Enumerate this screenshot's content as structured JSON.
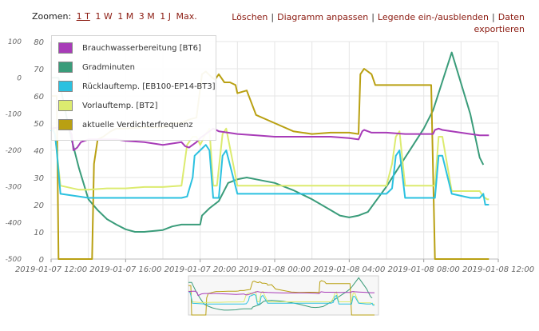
{
  "toolbar": {
    "zoom_label": "Zoomen:",
    "zoom_options": [
      "1 T",
      "1 W",
      "1 M",
      "3 M",
      "1 J",
      "Max."
    ],
    "zoom_active": "1 T",
    "actions": [
      "Löschen",
      "Diagramm anpassen",
      "Legende ein-/ausblenden",
      "Daten exportieren"
    ]
  },
  "chart_data": {
    "type": "line",
    "x_ticks": [
      "2019-01-07 12:00",
      "2019-01-07 16:00",
      "2019-01-07 20:00",
      "2019-01-08 00:00",
      "2019-01-08 04:00",
      "2019-01-08 08:00",
      "2019-01-08 12:00"
    ],
    "y_left": {
      "ylim": [
        -500,
        100
      ],
      "ticks": [
        "100",
        "0",
        "-100",
        "-200",
        "-300",
        "-400",
        "-500"
      ]
    },
    "y_right": {
      "ylim": [
        0,
        80
      ],
      "ticks": [
        "80",
        "70",
        "60",
        "50",
        "40",
        "30",
        "20",
        "10",
        "0"
      ]
    },
    "colors": {
      "Brauchwasserbereitung [BT6]": "#a83cb8",
      "Gradminuten": "#3a9c7a",
      "Rücklauftemp. [EB100-EP14-BT3]": "#2bc1e0",
      "Vorlauftemp. [BT2]": "#dceb6f",
      "aktuelle Verdichterfrequenz": "#b9a012"
    },
    "series": [
      {
        "name": "Brauchwasserbereitung [BT6]",
        "axis": "right",
        "x": [
          0.0,
          0.5,
          0.9,
          1.1,
          1.2,
          1.4,
          1.6,
          1.8,
          2.0,
          2.2,
          2.6,
          3.0,
          3.5,
          4.0,
          5.0,
          6.0,
          7.0,
          7.2,
          7.4,
          7.6,
          7.8,
          8.0,
          8.3,
          8.7,
          9.0,
          9.5,
          10.0,
          11.0,
          12.0,
          13.0,
          14.0,
          15.0,
          16.0,
          16.5,
          16.7,
          16.8,
          17.0,
          17.2,
          18.0,
          19.0,
          20.0,
          20.5,
          20.6,
          20.8,
          21.0,
          21.5,
          22.5,
          23.0,
          23.5
        ],
        "y": [
          48,
          48.5,
          48.5,
          46,
          40,
          41,
          43,
          43.5,
          44,
          44,
          44,
          44,
          44,
          43.5,
          43,
          42,
          43,
          41.5,
          41,
          42,
          43,
          44.5,
          46,
          48,
          47,
          46.5,
          46,
          45.5,
          45,
          45,
          45,
          45,
          44.5,
          44,
          47,
          47.5,
          47,
          46.5,
          46.5,
          46,
          46,
          46,
          47.5,
          48,
          47.5,
          47,
          46,
          45.5,
          45.5
        ]
      },
      {
        "name": "Gradminuten",
        "axis": "left",
        "x": [
          0.0,
          0.4,
          0.6,
          1.0,
          1.5,
          2.0,
          2.5,
          3.0,
          3.5,
          4.0,
          4.5,
          5.0,
          6.0,
          6.5,
          7.0,
          7.5,
          8.0,
          8.1,
          8.5,
          9.0,
          9.5,
          10.0,
          10.5,
          11.0,
          12.0,
          13.0,
          14.0,
          15.0,
          15.5,
          16.0,
          16.5,
          17.0,
          18.0,
          19.0,
          20.0,
          20.5,
          21.5,
          22.5,
          23.0,
          23.2
        ],
        "y": [
          0,
          0,
          -50,
          -150,
          -250,
          -335,
          -365,
          -390,
          -405,
          -418,
          -425,
          -425,
          -420,
          -410,
          -405,
          -405,
          -405,
          -380,
          -360,
          -340,
          -290,
          -280,
          -275,
          -280,
          -290,
          -310,
          -335,
          -365,
          -380,
          -385,
          -380,
          -370,
          -300,
          -220,
          -140,
          -90,
          70,
          -100,
          -220,
          -240
        ]
      },
      {
        "name": "Rücklauftemp. [EB100-EP14-BT3]",
        "axis": "right",
        "x": [
          0.0,
          0.1,
          0.2,
          0.3,
          0.5,
          1.5,
          2.0,
          3.0,
          4.0,
          5.0,
          6.0,
          7.0,
          7.3,
          7.6,
          7.7,
          8.0,
          8.3,
          8.5,
          8.7,
          9.0,
          9.2,
          9.4,
          10.0,
          12.0,
          14.0,
          15.0,
          16.0,
          17.0,
          18.0,
          18.3,
          18.5,
          18.7,
          19.0,
          20.0,
          20.6,
          20.8,
          21.0,
          21.5,
          22.5,
          23.0,
          23.2,
          23.3,
          23.5
        ],
        "y": [
          47,
          47.5,
          46,
          40,
          24,
          23,
          22.5,
          22.5,
          22.5,
          22.5,
          22.5,
          22.5,
          23,
          30,
          38,
          40,
          42,
          40,
          22.5,
          22.5,
          38,
          40,
          24,
          24,
          24,
          24,
          24,
          24,
          24,
          26,
          38,
          40,
          22.5,
          22.5,
          22.5,
          38,
          38,
          24,
          22.5,
          22.5,
          24,
          20,
          20
        ]
      },
      {
        "name": "Vorlauftemp. [BT2]",
        "axis": "right",
        "x": [
          0.0,
          0.1,
          0.2,
          0.3,
          0.5,
          1.5,
          2.0,
          3.0,
          4.0,
          5.0,
          6.0,
          7.0,
          7.3,
          7.6,
          7.8,
          8.0,
          8.3,
          8.5,
          8.7,
          8.9,
          9.2,
          9.4,
          10.0,
          12.0,
          14.0,
          15.0,
          16.0,
          17.0,
          18.0,
          18.3,
          18.5,
          18.7,
          19.0,
          20.0,
          20.6,
          20.8,
          21.0,
          21.5,
          22.5,
          23.0,
          23.2,
          23.4,
          23.5
        ],
        "y": [
          49,
          49,
          47,
          40,
          27,
          25.5,
          25.5,
          26,
          26,
          26.5,
          26.5,
          27,
          42,
          45,
          45,
          42,
          46,
          48,
          27,
          27,
          46,
          48,
          27,
          27,
          27,
          27,
          27,
          27,
          27,
          35,
          45,
          47,
          27,
          27,
          27,
          45,
          45,
          25,
          25,
          25,
          23,
          22,
          22
        ]
      },
      {
        "name": "aktuelle Verdichterfrequenz",
        "axis": "right",
        "x": [
          0.0,
          0.3,
          0.35,
          0.4,
          1.8,
          2.0,
          2.2,
          2.3,
          2.5,
          2.8,
          3.0,
          3.2,
          3.5,
          4.0,
          5.0,
          6.0,
          6.3,
          6.5,
          7.0,
          7.3,
          7.5,
          7.8,
          8.1,
          8.3,
          8.6,
          8.8,
          9.0,
          9.3,
          9.6,
          9.9,
          10.0,
          10.5,
          11.0,
          12.0,
          13.0,
          14.0,
          15.0,
          16.0,
          16.5,
          16.6,
          16.8,
          17.0,
          17.2,
          17.4,
          18.0,
          19.0,
          20.0,
          20.3,
          20.4,
          20.6,
          21.0,
          21.5,
          22.0,
          22.5,
          23.2,
          23.5
        ],
        "y": [
          60,
          60,
          30,
          0,
          0,
          0,
          0,
          35,
          44,
          45,
          46,
          47,
          48,
          48,
          48.5,
          48.5,
          49,
          50,
          50,
          51,
          51.5,
          52,
          68,
          69,
          67,
          66,
          68,
          65,
          65,
          64,
          61,
          62,
          53,
          50,
          47,
          46,
          46.5,
          46.5,
          46,
          68,
          70,
          69,
          68,
          64,
          64,
          64,
          64,
          64,
          64,
          0,
          0,
          0,
          0,
          0,
          0,
          0
        ]
      }
    ],
    "title": "",
    "xlabel": "",
    "ylabel": "",
    "grid": true,
    "legend_placement": "top-left"
  }
}
